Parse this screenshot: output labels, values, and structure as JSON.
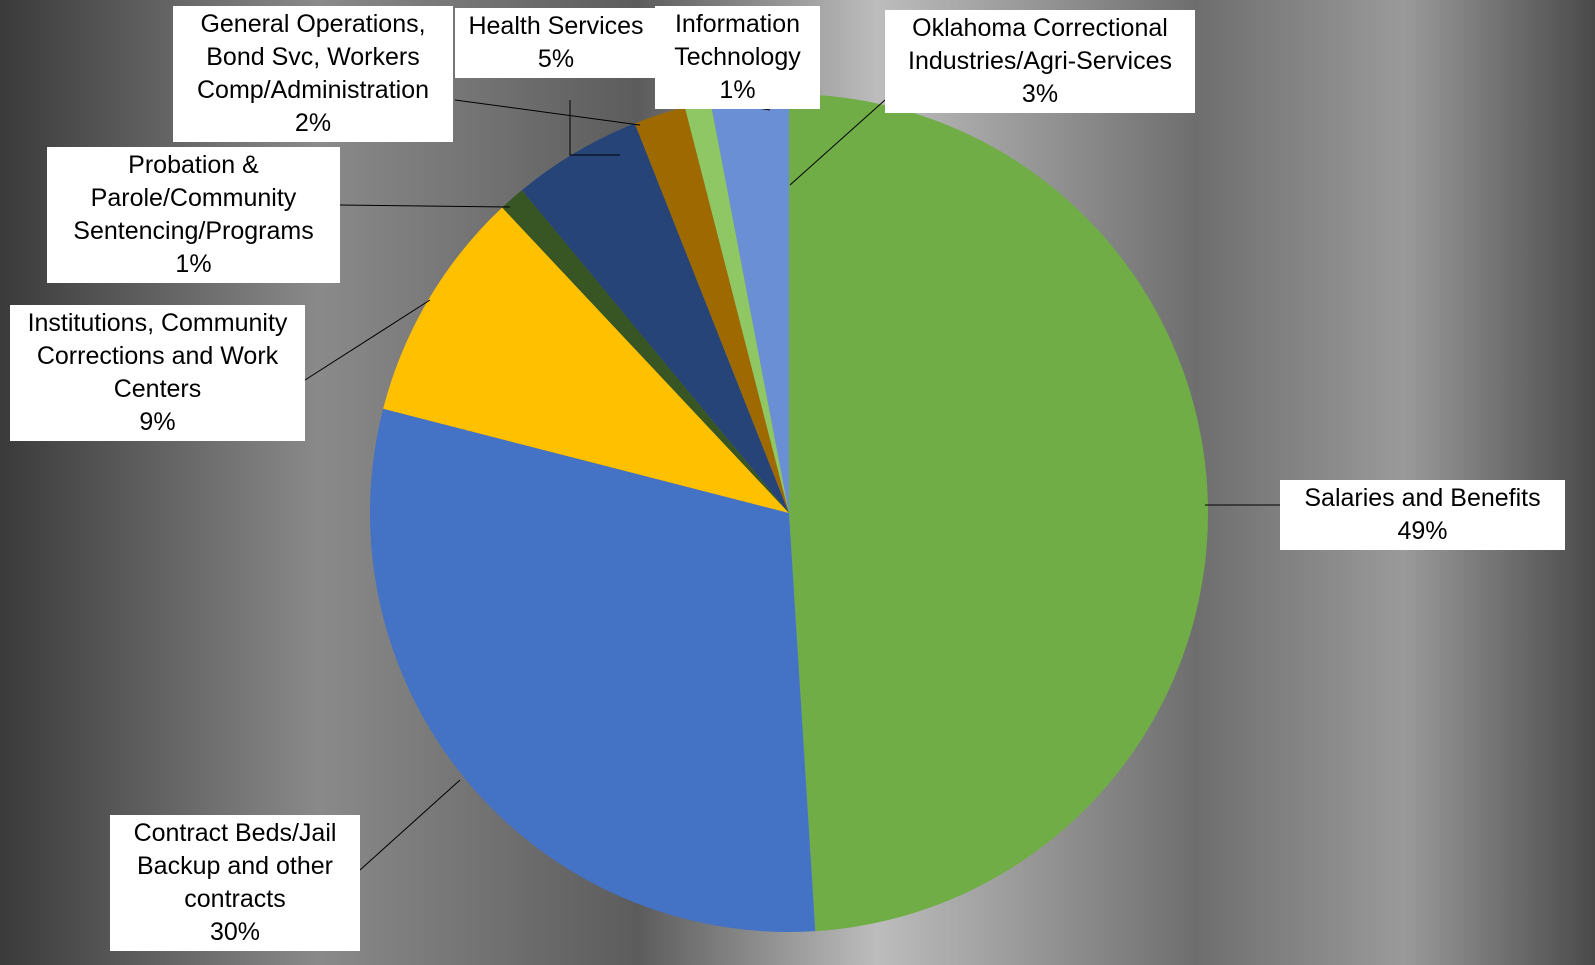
{
  "chart_data": {
    "type": "pie",
    "categories": [
      "Salaries and Benefits",
      "Contract Beds/Jail Backup and other contracts",
      "Institutions, Community Corrections and Work Centers",
      "Probation & Parole/Community Sentencing/Programs",
      "Health Services",
      "General Operations, Bond Svc, Workers Comp/Administration",
      "Information Technology",
      "Oklahoma Correctional Industries/Agri-Services"
    ],
    "values": [
      49,
      30,
      9,
      1,
      5,
      2,
      1,
      3
    ],
    "value_labels": [
      "49%",
      "30%",
      "9%",
      "1%",
      "5%",
      "2%",
      "1%",
      "3%"
    ],
    "colors": [
      "#70ad47",
      "#4472c4",
      "#ffc000",
      "#375623",
      "#264478",
      "#9e6a00",
      "#8fc765",
      "#6a8fd4"
    ]
  }
}
